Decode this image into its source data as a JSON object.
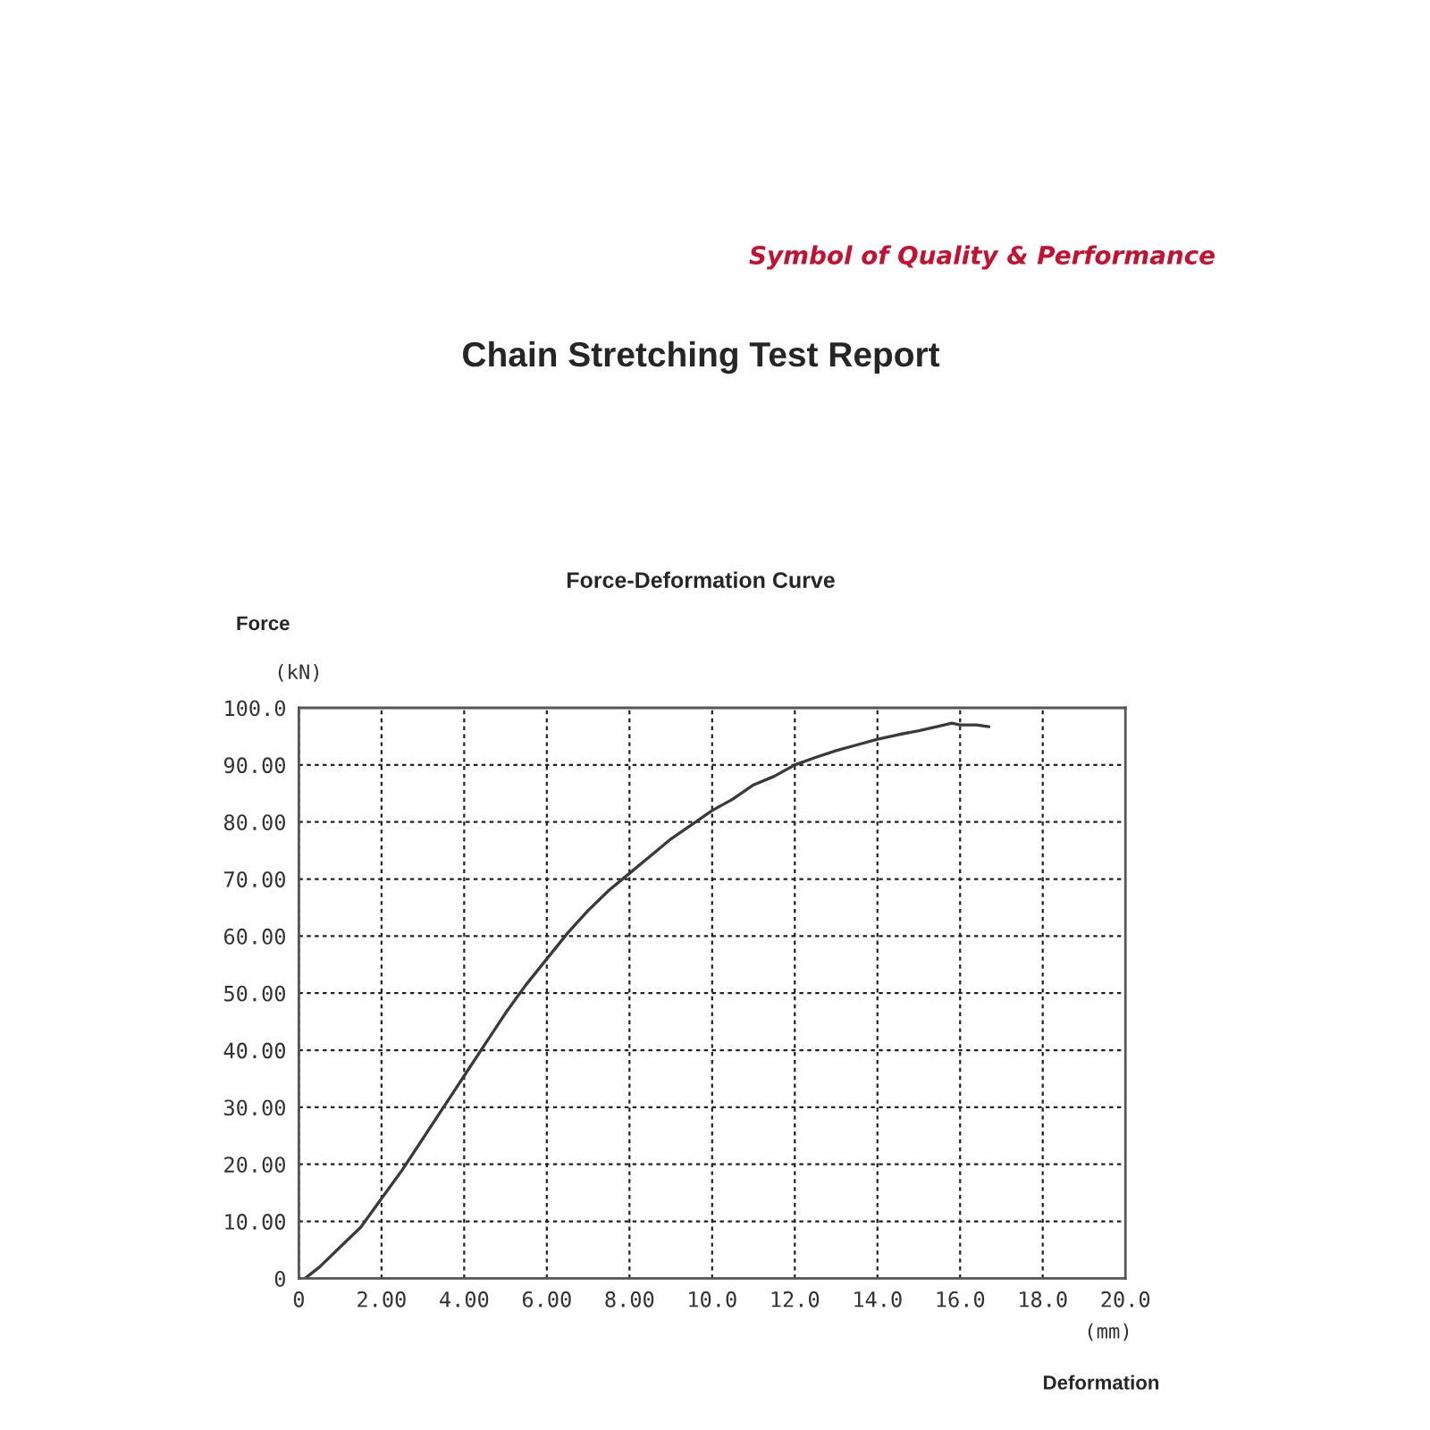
{
  "chart_data": {
    "type": "line",
    "title": "Chain Stretching Test Report",
    "subtitle": "Force-Deformation Curve",
    "xlabel": "Deformation",
    "ylabel": "Force",
    "annotations": [
      "Symbol of Quality & Performance",
      "(kN)",
      "(mm)"
    ],
    "series": [
      {
        "color": "#3a3a3a",
        "x": [
          0.15,
          0.5,
          1.0,
          1.5,
          2.0,
          2.5,
          3.0,
          3.5,
          4.0,
          4.5,
          5.0,
          5.5,
          6.0,
          6.5,
          7.0,
          7.5,
          8.0,
          8.5,
          9.0,
          9.5,
          10.0,
          10.5,
          11.0,
          11.5,
          12.0,
          12.5,
          13.0,
          13.5,
          14.0,
          14.5,
          15.0,
          15.5,
          15.8,
          16.0,
          16.4,
          16.7
        ],
        "values": [
          0,
          2,
          5.5,
          9,
          14,
          19,
          24.5,
          30,
          35.5,
          41,
          46.5,
          51.5,
          56,
          60.5,
          64.5,
          68,
          71,
          74,
          77,
          79.5,
          82,
          84,
          86.5,
          88,
          90,
          91.3,
          92.5,
          93.5,
          94.5,
          95.3,
          96,
          96.8,
          97.3,
          97,
          97,
          96.7
        ]
      }
    ],
    "xlim": [
      0,
      20
    ],
    "ylim": [
      0,
      100
    ],
    "xticks": [
      {
        "value": 0,
        "label": "0"
      },
      {
        "value": 2,
        "label": "2.00"
      },
      {
        "value": 4,
        "label": "4.00"
      },
      {
        "value": 6,
        "label": "6.00"
      },
      {
        "value": 8,
        "label": "8.00"
      },
      {
        "value": 10,
        "label": "10.0"
      },
      {
        "value": 12,
        "label": "12.0"
      },
      {
        "value": 14,
        "label": "14.0"
      },
      {
        "value": 16,
        "label": "16.0"
      },
      {
        "value": 18,
        "label": "18.0"
      },
      {
        "value": 20,
        "label": "20.0"
      }
    ],
    "yticks": [
      {
        "value": 0,
        "label": "0"
      },
      {
        "value": 10,
        "label": "10.00"
      },
      {
        "value": 20,
        "label": "20.00"
      },
      {
        "value": 30,
        "label": "30.00"
      },
      {
        "value": 40,
        "label": "40.00"
      },
      {
        "value": 50,
        "label": "50.00"
      },
      {
        "value": 60,
        "label": "60.00"
      },
      {
        "value": 70,
        "label": "70.00"
      },
      {
        "value": 80,
        "label": "80.00"
      },
      {
        "value": 90,
        "label": "90.00"
      },
      {
        "value": 100,
        "label": "100.0"
      }
    ],
    "grid": true,
    "legend": false,
    "marker": "none",
    "line_style": "solid"
  }
}
